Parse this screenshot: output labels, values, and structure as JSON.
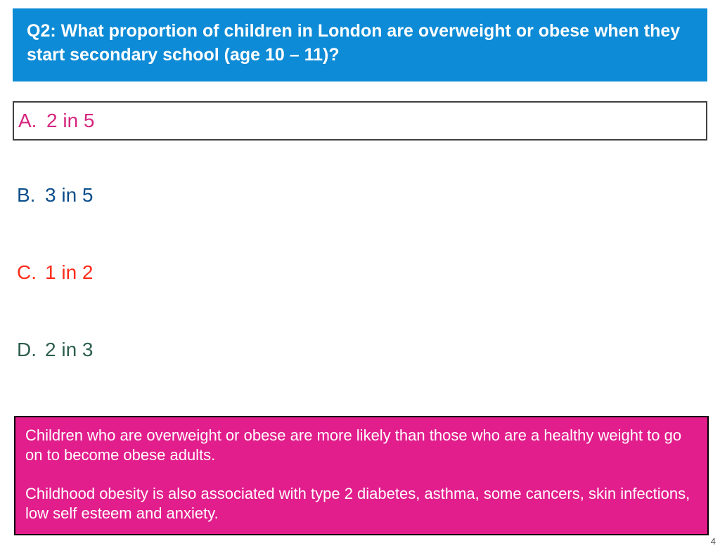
{
  "header": {
    "text": "Q2: What proportion of children in London are overweight or obese when they start secondary school (age 10 – 11)?",
    "bg_color": "#0d8bd6",
    "text_color": "#ffffff",
    "fontsize": 25
  },
  "options": [
    {
      "letter": "A.",
      "text": "2 in 5",
      "color": "#d6267e",
      "selected": true
    },
    {
      "letter": "B.",
      "text": "3 in 5",
      "color": "#0c4e8c",
      "selected": false
    },
    {
      "letter": "C.",
      "text": "1 in 2",
      "color": "#ff2a1a",
      "selected": false
    },
    {
      "letter": "D.",
      "text": "2 in 3",
      "color": "#2d5e4f",
      "selected": false
    }
  ],
  "option_fontsize": 28,
  "info": {
    "para1": "Children who are overweight or obese are more likely than those who are a healthy weight to go on to become obese adults.",
    "para2": "Childhood obesity is also associated with type 2 diabetes, asthma, some cancers, skin infections, low self esteem and anxiety.",
    "bg_color": "#e21e8c",
    "text_color": "#ffffff",
    "fontsize": 22
  },
  "page_number": "4"
}
